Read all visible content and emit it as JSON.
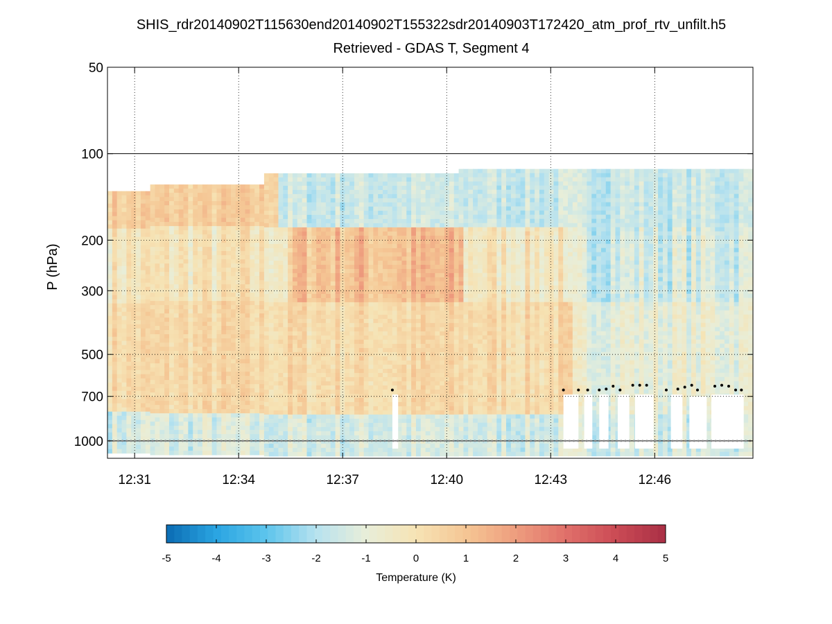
{
  "chart_data": {
    "type": "heatmap",
    "title": "SHIS_rdr20140902T115630end20140902T155322sdr20140903T172420_atm_prof_rtv_unfilt.h5",
    "subtitle": "Retrieved - GDAS T, Segment 4",
    "ylabel": "P (hPa)",
    "yscale": "log",
    "yreversed": true,
    "ylim": [
      50,
      1150
    ],
    "yticks": [
      50,
      100,
      200,
      300,
      500,
      700,
      1000
    ],
    "ytick_labels": [
      "50",
      "100",
      "200",
      "300",
      "500",
      "700",
      "1000"
    ],
    "xlim": [
      "12:30:13",
      "12:48:50"
    ],
    "xticks": [
      "12:31",
      "12:34",
      "12:37",
      "12:40",
      "12:43",
      "12:46"
    ],
    "grid": true,
    "colorbar": {
      "label": "Temperature (K)",
      "min": -5,
      "max": 5,
      "ticks": [
        -5,
        -4,
        -3,
        -2,
        -1,
        0,
        1,
        2,
        3,
        4,
        5
      ],
      "tick_labels": [
        "-5",
        "-4",
        "-3",
        "-2",
        "-1",
        "0",
        "1",
        "2",
        "3",
        "4",
        "5"
      ],
      "colormap": "blue-white-red diverging (RdYlBu reversed)",
      "colors": [
        "#0b6cb3",
        "#2aa5e2",
        "#5cc4ec",
        "#b7e2ef",
        "#e8eed9",
        "#f6e3b4",
        "#f5c694",
        "#ee9d7e",
        "#e0706a",
        "#cb4b55",
        "#a92f45"
      ]
    },
    "description_profile": {
      "upper_troposphere_warm_band_hPa": [
        200,
        300
      ],
      "lower_troposphere_cool_band_hPa": [
        800,
        1000
      ],
      "cloud_top_markers": "black dots near 650-700 hPa after 12:43",
      "surface_markers": "grey dots near 1000 hPa"
    }
  }
}
